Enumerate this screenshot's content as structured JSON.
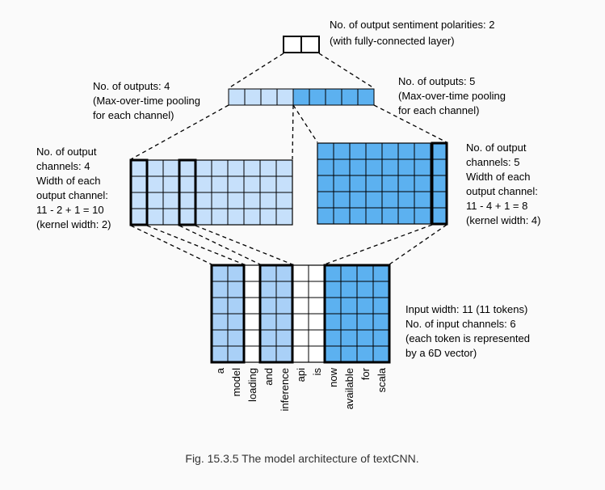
{
  "colors": {
    "light_blue": "#c6e0fb",
    "mid_blue": "#a9d0f7",
    "dark_blue": "#5cb1f0",
    "white": "#ffffff",
    "stroke": "#000000",
    "background": "#fafafa"
  },
  "annotations": {
    "output": [
      "No. of output sentiment polarities: 2",
      "(with fully-connected layer)"
    ],
    "pool_left": [
      "No. of outputs: 4",
      "(Max-over-time pooling",
      "for each channel)"
    ],
    "pool_right": [
      "No. of outputs: 5",
      "(Max-over-time pooling",
      "for each channel)"
    ],
    "conv_left": [
      "No. of output",
      "channels: 4",
      "Width of each",
      "output channel:",
      "11 - 2 + 1 = 10",
      "(kernel width: 2)"
    ],
    "conv_right": [
      "No. of output",
      "channels: 5",
      "Width of each",
      "output channel:",
      "11 - 4 + 1 = 8",
      "(kernel width: 4)"
    ],
    "input": [
      "Input width: 11 (11 tokens)",
      "No. of input channels: 6",
      "(each token is represented",
      "by a 6D vector)"
    ]
  },
  "tokens": [
    "a",
    "model",
    "loading",
    "and",
    "inference",
    "api",
    "is",
    "now",
    "available",
    "for",
    "scala"
  ],
  "caption": "Fig. 15.3.5  The model architecture of textCNN.",
  "structure": {
    "input": {
      "width": 11,
      "channels": 6,
      "column_fill": [
        "mid",
        "mid",
        "white",
        "mid",
        "mid",
        "white",
        "white",
        "dark",
        "dark",
        "dark",
        "dark"
      ]
    },
    "conv_left": {
      "width": 10,
      "channels": 4,
      "kernel_width": 2
    },
    "conv_right": {
      "width": 8,
      "channels": 5,
      "kernel_width": 4
    },
    "pool": {
      "left_outputs": 4,
      "right_outputs": 5
    },
    "output": {
      "units": 2
    }
  }
}
